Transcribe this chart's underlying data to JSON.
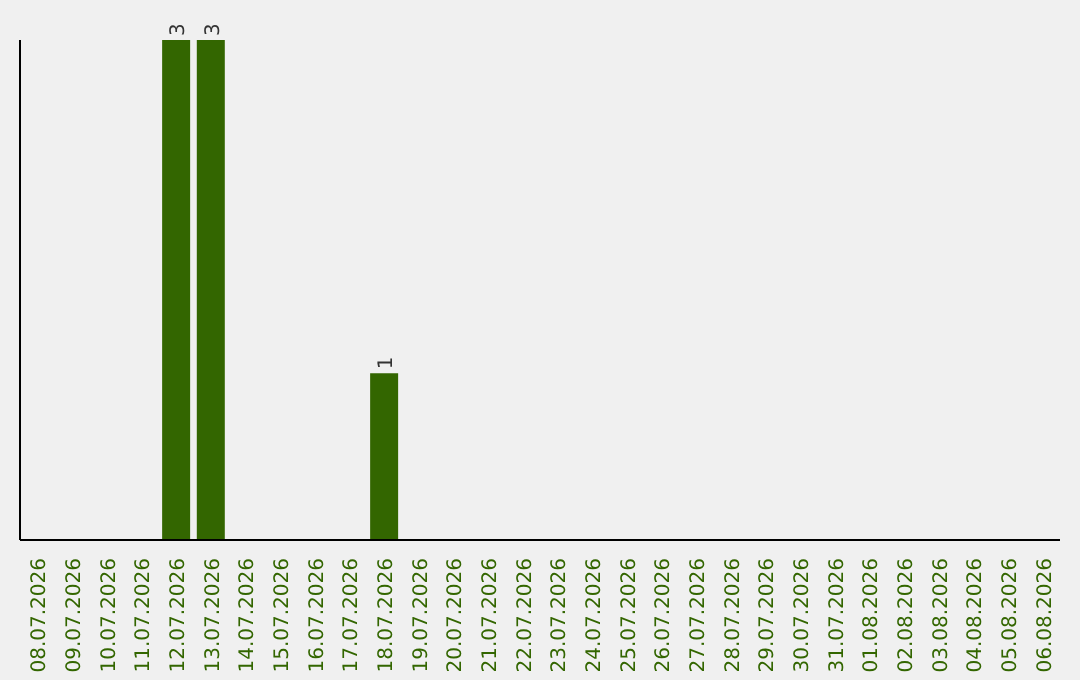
{
  "chart_data": {
    "type": "bar",
    "categories": [
      "08.07.2026",
      "09.07.2026",
      "10.07.2026",
      "11.07.2026",
      "12.07.2026",
      "13.07.2026",
      "14.07.2026",
      "15.07.2026",
      "16.07.2026",
      "17.07.2026",
      "18.07.2026",
      "19.07.2026",
      "20.07.2026",
      "21.07.2026",
      "22.07.2026",
      "23.07.2026",
      "24.07.2026",
      "25.07.2026",
      "26.07.2026",
      "27.07.2026",
      "28.07.2026",
      "29.07.2026",
      "30.07.2026",
      "31.07.2026",
      "01.08.2026",
      "02.08.2026",
      "03.08.2026",
      "04.08.2026",
      "05.08.2026",
      "06.08.2026"
    ],
    "values": [
      0,
      0,
      0,
      0,
      3,
      3,
      0,
      0,
      0,
      0,
      1,
      0,
      0,
      0,
      0,
      0,
      0,
      0,
      0,
      0,
      0,
      0,
      0,
      0,
      0,
      0,
      0,
      0,
      0,
      0
    ],
    "value_labels": [
      null,
      null,
      null,
      null,
      "3",
      "3",
      null,
      null,
      null,
      null,
      "1",
      null,
      null,
      null,
      null,
      null,
      null,
      null,
      null,
      null,
      null,
      null,
      null,
      null,
      null,
      null,
      null,
      null,
      null,
      null
    ],
    "color": "#336600"
  }
}
